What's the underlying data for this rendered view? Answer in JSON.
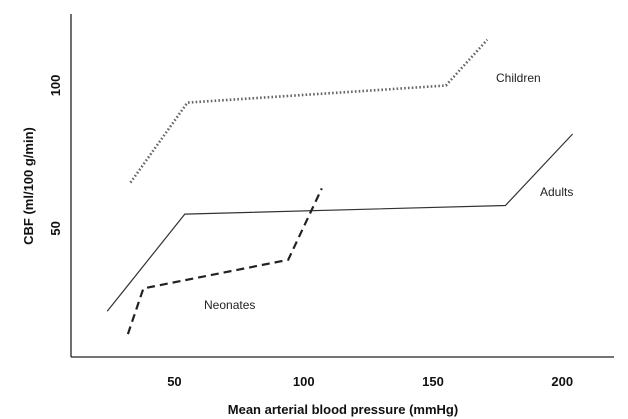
{
  "chart_data": {
    "type": "line",
    "title": "",
    "xlabel": "Mean arterial blood pressure (mmHg)",
    "ylabel": "CBF (ml/100 g/min)",
    "xlim": [
      10,
      220
    ],
    "ylim": [
      5,
      125
    ],
    "xticks": [
      50,
      100,
      150,
      200
    ],
    "yticks": [
      50,
      100
    ],
    "grid": false,
    "legend": "none",
    "series": [
      {
        "name": "Children",
        "style": "dotted",
        "color": "#666666",
        "x": [
          33,
          55,
          155,
          171
        ],
        "y": [
          66,
          94,
          100,
          116
        ]
      },
      {
        "name": "Adults",
        "style": "solid",
        "color": "#333333",
        "x": [
          24,
          54,
          178,
          204
        ],
        "y": [
          21,
          55,
          58,
          83
        ]
      },
      {
        "name": "Neonates",
        "style": "dashed",
        "color": "#222222",
        "x": [
          32,
          38,
          94,
          107
        ],
        "y": [
          13,
          29,
          39,
          64
        ]
      }
    ]
  }
}
